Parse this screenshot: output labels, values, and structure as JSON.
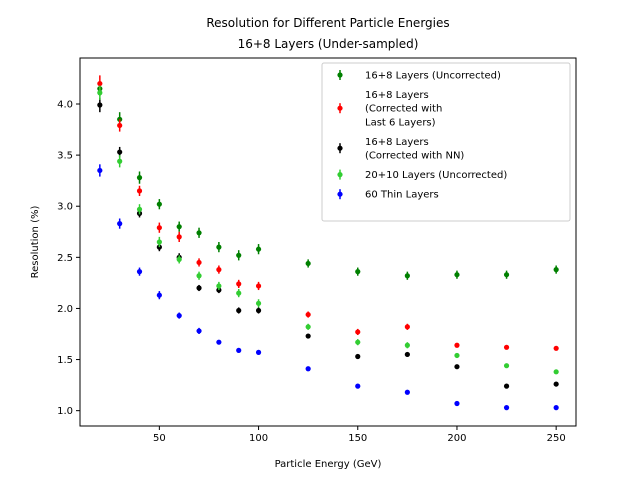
{
  "chart_data": {
    "type": "scatter",
    "title": "Resolution for Different Particle Energies",
    "subtitle": "16+8 Layers (Under-sampled)",
    "xlabel": "Particle Energy (GeV)",
    "ylabel": "Resolution (%)",
    "xlim": [
      10,
      260
    ],
    "ylim": [
      0.85,
      4.45
    ],
    "xticks": [
      50,
      100,
      150,
      200,
      250
    ],
    "xtick_labels": [
      "50",
      "100",
      "150",
      "200",
      "250"
    ],
    "yticks": [
      1.0,
      1.5,
      2.0,
      2.5,
      3.0,
      3.5,
      4.0
    ],
    "ytick_labels": [
      "1.0",
      "1.5",
      "2.0",
      "2.5",
      "3.0",
      "3.5",
      "4.0"
    ],
    "grid": false,
    "legend_position": "top-right",
    "x": [
      20,
      30,
      40,
      50,
      60,
      70,
      80,
      90,
      100,
      125,
      150,
      175,
      200,
      225,
      250
    ],
    "series": [
      {
        "name": "16+8 Layers (Uncorrected)",
        "legend_lines": [
          "16+8 Layers (Uncorrected)"
        ],
        "color": "#008000",
        "values": [
          4.15,
          3.85,
          3.28,
          3.02,
          2.8,
          2.74,
          2.6,
          2.52,
          2.58,
          2.44,
          2.36,
          2.32,
          2.33,
          2.33,
          2.38
        ],
        "errors": [
          0.07,
          0.07,
          0.06,
          0.05,
          0.05,
          0.05,
          0.05,
          0.05,
          0.05,
          0.04,
          0.04,
          0.04,
          0.04,
          0.04,
          0.04
        ]
      },
      {
        "name": "16+8 Layers (Corrected with Last 6 Layers)",
        "legend_lines": [
          "16+8 Layers",
          "(Corrected with",
          "Last 6 Layers)"
        ],
        "color": "#ff0000",
        "values": [
          4.2,
          3.79,
          3.15,
          2.79,
          2.7,
          2.45,
          2.38,
          2.24,
          2.22,
          1.94,
          1.77,
          1.82,
          1.64,
          1.62,
          1.61
        ],
        "errors": [
          0.08,
          0.06,
          0.05,
          0.05,
          0.05,
          0.04,
          0.04,
          0.04,
          0.04,
          0.03,
          0.03,
          0.03,
          0.02,
          0.02,
          0.02
        ]
      },
      {
        "name": "16+8 Layers (Corrected with NN)",
        "legend_lines": [
          "16+8 Layers",
          "(Corrected with NN)"
        ],
        "color": "#000000",
        "values": [
          3.99,
          3.53,
          2.93,
          2.6,
          2.5,
          2.2,
          2.18,
          1.98,
          1.98,
          1.73,
          1.53,
          1.55,
          1.43,
          1.24,
          1.26
        ],
        "errors": [
          0.07,
          0.05,
          0.04,
          0.04,
          0.04,
          0.03,
          0.03,
          0.03,
          0.03,
          0.02,
          0.02,
          0.02,
          0.02,
          0.01,
          0.01
        ]
      },
      {
        "name": "20+10 Layers (Uncorrected)",
        "legend_lines": [
          "20+10 Layers (Uncorrected)"
        ],
        "color": "#32cd32",
        "values": [
          4.11,
          3.44,
          2.97,
          2.65,
          2.48,
          2.32,
          2.22,
          2.15,
          2.05,
          1.82,
          1.67,
          1.64,
          1.54,
          1.44,
          1.38
        ],
        "errors": [
          0.07,
          0.06,
          0.05,
          0.05,
          0.04,
          0.04,
          0.04,
          0.04,
          0.04,
          0.03,
          0.03,
          0.03,
          0.02,
          0.02,
          0.02
        ]
      },
      {
        "name": "60 Thin Layers",
        "legend_lines": [
          "60 Thin Layers"
        ],
        "color": "#0000ff",
        "values": [
          3.35,
          2.83,
          2.36,
          2.13,
          1.93,
          1.78,
          1.67,
          1.59,
          1.57,
          1.41,
          1.24,
          1.18,
          1.07,
          1.03,
          1.03
        ],
        "errors": [
          0.06,
          0.05,
          0.04,
          0.04,
          0.03,
          0.03,
          0.02,
          0.02,
          0.02,
          0.02,
          0.01,
          0.01,
          0.01,
          0.01,
          0.01
        ]
      }
    ]
  }
}
